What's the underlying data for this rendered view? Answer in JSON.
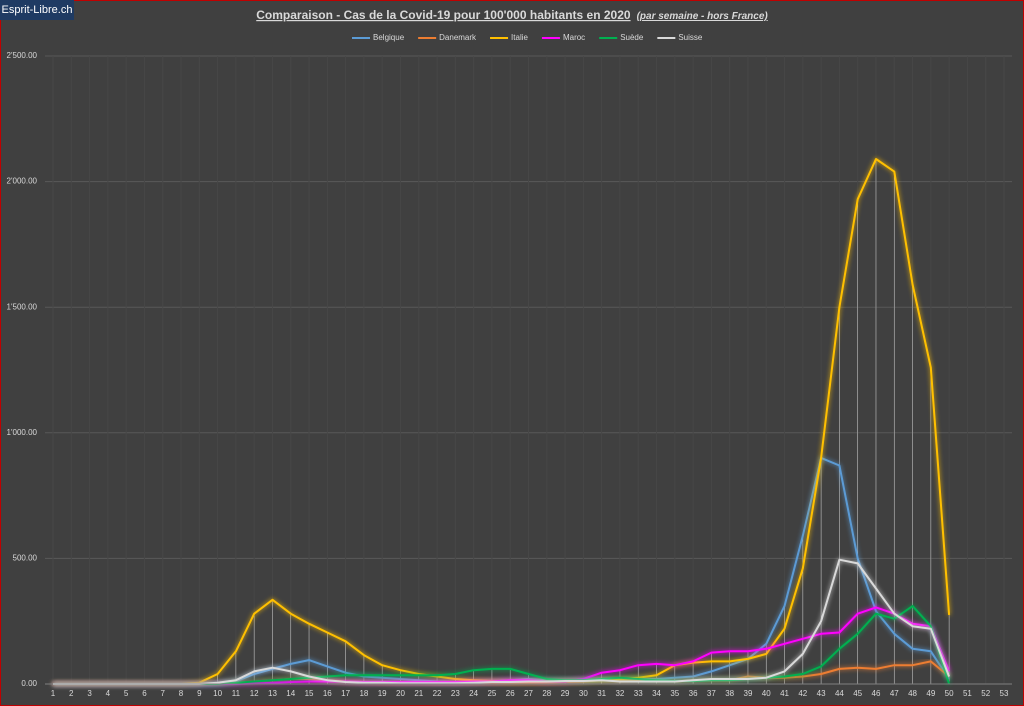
{
  "watermark": "Esprit-Libre.ch",
  "chart_data": {
    "type": "line",
    "title": "Comparaison - Cas de la Covid-19 pour 100'000  habitants en 2020",
    "subtitle": "(par semaine - hors France)",
    "categories": [
      "1",
      "2",
      "3",
      "4",
      "5",
      "6",
      "7",
      "8",
      "9",
      "10",
      "11",
      "12",
      "13",
      "14",
      "15",
      "16",
      "17",
      "18",
      "19",
      "20",
      "21",
      "22",
      "23",
      "24",
      "25",
      "26",
      "27",
      "28",
      "29",
      "30",
      "31",
      "32",
      "33",
      "34",
      "35",
      "36",
      "37",
      "38",
      "39",
      "40",
      "41",
      "42",
      "43",
      "44",
      "45",
      "46",
      "47",
      "48",
      "49",
      "50",
      "51",
      "52",
      "53"
    ],
    "ylim": [
      0,
      2500
    ],
    "yticks": [
      {
        "value": 0,
        "label": "0.00"
      },
      {
        "value": 500,
        "label": "500.00"
      },
      {
        "value": 1000,
        "label": "1'000.00"
      },
      {
        "value": 1500,
        "label": "1'500.00"
      },
      {
        "value": 2000,
        "label": "2'000.00"
      },
      {
        "value": 2500,
        "label": "2'500.00"
      }
    ],
    "grid": true,
    "legend": "top",
    "drop_lines": true,
    "series": [
      {
        "name": "Belgique",
        "color": "#5b9bd5",
        "values": [
          0,
          0,
          0,
          0,
          0,
          0,
          0,
          0,
          0,
          0,
          10,
          40,
          60,
          80,
          95,
          70,
          45,
          30,
          25,
          20,
          15,
          10,
          8,
          8,
          10,
          15,
          20,
          15,
          15,
          15,
          20,
          20,
          20,
          20,
          25,
          30,
          50,
          75,
          100,
          160,
          310,
          590,
          900,
          870,
          500,
          290,
          200,
          140,
          130,
          20,
          null,
          null,
          null
        ]
      },
      {
        "name": "Danemark",
        "color": "#ed7d31",
        "values": [
          0,
          0,
          0,
          0,
          0,
          0,
          0,
          0,
          0,
          0,
          5,
          10,
          15,
          20,
          20,
          15,
          10,
          8,
          5,
          5,
          5,
          3,
          3,
          3,
          3,
          3,
          3,
          5,
          8,
          10,
          15,
          15,
          15,
          10,
          10,
          15,
          15,
          15,
          30,
          25,
          25,
          30,
          40,
          60,
          65,
          60,
          75,
          75,
          90,
          30,
          null,
          null,
          null
        ]
      },
      {
        "name": "Italie",
        "color": "#ffc000",
        "values": [
          0,
          0,
          0,
          0,
          0,
          0,
          0,
          0,
          5,
          40,
          130,
          280,
          335,
          280,
          240,
          205,
          170,
          115,
          75,
          55,
          40,
          30,
          20,
          15,
          12,
          10,
          10,
          10,
          10,
          12,
          15,
          20,
          25,
          35,
          75,
          85,
          90,
          90,
          100,
          120,
          220,
          460,
          900,
          1500,
          1930,
          2090,
          2040,
          1590,
          1260,
          275,
          null,
          null,
          null
        ]
      },
      {
        "name": "Maroc",
        "color": "#ff00ff",
        "values": [
          0,
          0,
          0,
          0,
          0,
          0,
          0,
          0,
          0,
          0,
          0,
          2,
          5,
          8,
          10,
          10,
          10,
          8,
          8,
          8,
          8,
          8,
          8,
          10,
          10,
          15,
          15,
          10,
          10,
          20,
          45,
          55,
          75,
          80,
          75,
          90,
          125,
          130,
          130,
          140,
          160,
          180,
          200,
          205,
          280,
          305,
          280,
          240,
          230,
          50,
          null,
          null,
          null
        ]
      },
      {
        "name": "Suède",
        "color": "#00b050",
        "values": [
          0,
          0,
          0,
          0,
          0,
          0,
          0,
          0,
          0,
          0,
          5,
          10,
          15,
          20,
          25,
          30,
          35,
          35,
          35,
          35,
          35,
          35,
          40,
          55,
          60,
          60,
          40,
          20,
          15,
          15,
          20,
          25,
          20,
          15,
          12,
          12,
          15,
          15,
          20,
          25,
          30,
          40,
          70,
          140,
          200,
          280,
          260,
          310,
          230,
          0,
          null,
          null,
          null
        ]
      },
      {
        "name": "Suisse",
        "color": "#d9d9d9",
        "values": [
          0,
          0,
          0,
          0,
          0,
          0,
          0,
          0,
          0,
          5,
          15,
          50,
          65,
          50,
          30,
          15,
          8,
          5,
          5,
          3,
          3,
          3,
          3,
          5,
          8,
          8,
          10,
          10,
          12,
          12,
          15,
          10,
          10,
          10,
          10,
          15,
          20,
          20,
          20,
          25,
          50,
          120,
          250,
          495,
          480,
          380,
          280,
          230,
          220,
          30,
          null,
          null,
          null
        ]
      }
    ]
  }
}
